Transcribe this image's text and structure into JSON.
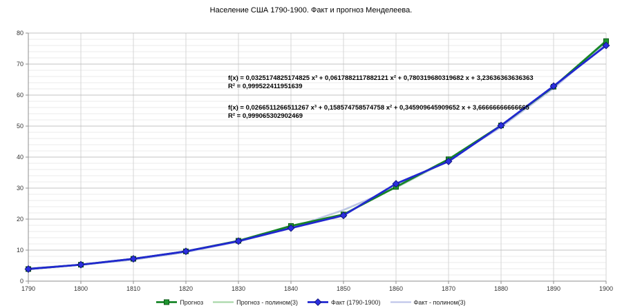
{
  "title": "Население США 1790-1900. Факт и прогноз Менделеева.",
  "annotations": {
    "prognoz_polynomial": {
      "equation": "f(x) = 0,0325174825174825 x³ + 0,0617882117882121 x² + 0,780319680319682 x + 3,23636363636363",
      "r2": "R² = 0,999522411951639"
    },
    "fakt_polynomial": {
      "equation": "f(x) = 0,0266511266511267 x³ + 0,158574758574758 x² + 0,345909645909652 x + 3,66666666666665",
      "r2": "R² = 0,999065302902469"
    }
  },
  "chart_data": {
    "type": "line",
    "title": "Население США 1790-1900. Факт и прогноз Менделеева.",
    "xlabel": "",
    "ylabel": "",
    "categories": [
      1790,
      1800,
      1810,
      1820,
      1830,
      1840,
      1850,
      1860,
      1870,
      1880,
      1890,
      1900
    ],
    "x_tick_labels": [
      "1790",
      "1800",
      "1810",
      "1820",
      "1830",
      "1840",
      "1850",
      "1860",
      "1870",
      "1880",
      "1890",
      "1900"
    ],
    "y_ticks": [
      0,
      10,
      20,
      30,
      40,
      50,
      60,
      70,
      80
    ],
    "y_tick_labels": [
      "0",
      "10",
      "20",
      "30",
      "40",
      "50",
      "60",
      "70",
      "80"
    ],
    "xlim": [
      1790,
      1900
    ],
    "ylim": [
      0,
      80
    ],
    "y_major_interval": 10,
    "y_minor_interval": 2,
    "grid_on": true,
    "legend_position": "bottom",
    "series": [
      {
        "name": "Прогноз",
        "color": "#168527",
        "marker": "square",
        "marker_fill": "#1f9630",
        "marker_edge": "#0b5516",
        "line_width": 2.8,
        "values": [
          3.9,
          5.3,
          7.2,
          9.6,
          13.0,
          17.8,
          21.5,
          30.4,
          39.3,
          50.2,
          62.7,
          77.4
        ]
      },
      {
        "name": "Прогноз - полином(3)",
        "color": "#a9d8a9",
        "marker": "none",
        "line_width": 2.2,
        "values": [
          4.11,
          5.3,
          7.01,
          9.43,
          12.75,
          17.17,
          22.88,
          30.08,
          38.97,
          49.74,
          62.58,
          77.69
        ]
      },
      {
        "name": "Факт (1790-1900)",
        "color": "#2127d0",
        "marker": "diamond",
        "marker_fill": "#2b2fe0",
        "marker_edge": "#12157e",
        "line_width": 2.8,
        "values": [
          3.9,
          5.3,
          7.2,
          9.6,
          12.9,
          17.1,
          21.2,
          31.4,
          38.6,
          50.2,
          62.9,
          76.0
        ]
      },
      {
        "name": "Факт - полином(3)",
        "color": "#bfc5e9",
        "marker": "none",
        "line_width": 2.2,
        "values": [
          4.2,
          5.21,
          6.85,
          9.29,
          12.69,
          17.21,
          23.0,
          30.23,
          39.05,
          49.63,
          62.13,
          76.71
        ]
      }
    ],
    "grid_colors": {
      "major": "#c3c3c3",
      "minor": "#ebebeb",
      "vertical": "#d5d5d5",
      "axis": "#8f8f8f"
    },
    "label_color": "#333333"
  }
}
